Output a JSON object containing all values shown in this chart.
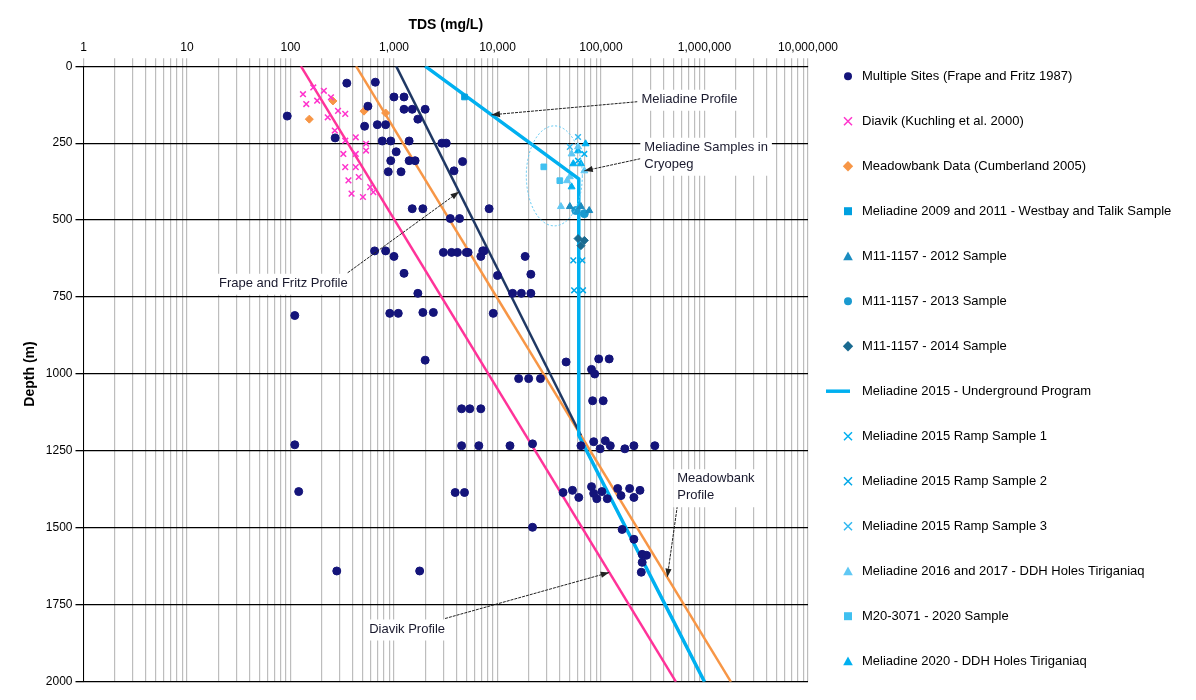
{
  "chart_data": {
    "type": "scatter",
    "xlabel": "TDS (mg/L)",
    "ylabel": "Depth (m)",
    "log": "x",
    "grid": true,
    "legend": "right",
    "xlim": [
      1,
      10000000
    ],
    "xticks": [
      {
        "value": 1,
        "label": "1"
      },
      {
        "value": 2,
        "label": null
      },
      {
        "value": 3,
        "label": null
      },
      {
        "value": 4,
        "label": null
      },
      {
        "value": 5,
        "label": null
      },
      {
        "value": 6,
        "label": null
      },
      {
        "value": 7,
        "label": null
      },
      {
        "value": 8,
        "label": null
      },
      {
        "value": 9,
        "label": null
      },
      {
        "value": 10,
        "label": "10"
      },
      {
        "value": 20,
        "label": null
      },
      {
        "value": 30,
        "label": null
      },
      {
        "value": 40,
        "label": null
      },
      {
        "value": 50,
        "label": null
      },
      {
        "value": 60,
        "label": null
      },
      {
        "value": 70,
        "label": null
      },
      {
        "value": 80,
        "label": null
      },
      {
        "value": 90,
        "label": null
      },
      {
        "value": 100,
        "label": "100"
      },
      {
        "value": 200,
        "label": null
      },
      {
        "value": 300,
        "label": null
      },
      {
        "value": 400,
        "label": null
      },
      {
        "value": 500,
        "label": null
      },
      {
        "value": 600,
        "label": null
      },
      {
        "value": 700,
        "label": null
      },
      {
        "value": 800,
        "label": null
      },
      {
        "value": 900,
        "label": null
      },
      {
        "value": 1000,
        "label": "1,000"
      },
      {
        "value": 2000,
        "label": null
      },
      {
        "value": 3000,
        "label": null
      },
      {
        "value": 4000,
        "label": null
      },
      {
        "value": 5000,
        "label": null
      },
      {
        "value": 6000,
        "label": null
      },
      {
        "value": 7000,
        "label": null
      },
      {
        "value": 8000,
        "label": null
      },
      {
        "value": 9000,
        "label": null
      },
      {
        "value": 10000,
        "label": "10,000"
      },
      {
        "value": 20000,
        "label": null
      },
      {
        "value": 30000,
        "label": null
      },
      {
        "value": 40000,
        "label": null
      },
      {
        "value": 50000,
        "label": null
      },
      {
        "value": 60000,
        "label": null
      },
      {
        "value": 70000,
        "label": null
      },
      {
        "value": 80000,
        "label": null
      },
      {
        "value": 90000,
        "label": null
      },
      {
        "value": 100000,
        "label": "100,000"
      },
      {
        "value": 200000,
        "label": null
      },
      {
        "value": 300000,
        "label": null
      },
      {
        "value": 400000,
        "label": null
      },
      {
        "value": 500000,
        "label": null
      },
      {
        "value": 600000,
        "label": null
      },
      {
        "value": 700000,
        "label": null
      },
      {
        "value": 800000,
        "label": null
      },
      {
        "value": 900000,
        "label": null
      },
      {
        "value": 1000000,
        "label": "1,000,000"
      },
      {
        "value": 2000000,
        "label": null
      },
      {
        "value": 3000000,
        "label": null
      },
      {
        "value": 4000000,
        "label": null
      },
      {
        "value": 5000000,
        "label": null
      },
      {
        "value": 6000000,
        "label": null
      },
      {
        "value": 7000000,
        "label": null
      },
      {
        "value": 8000000,
        "label": null
      },
      {
        "value": 9000000,
        "label": null
      },
      {
        "value": 10000000,
        "label": "10,000,000"
      }
    ],
    "ylim": [
      2000,
      0
    ],
    "yticks": [
      0,
      250,
      500,
      750,
      1000,
      1250,
      1500,
      1750,
      2000
    ],
    "series": [
      {
        "name": "Multiple Sites (Frape and Fritz 1987)",
        "type": "scatter",
        "marker": "circle",
        "color": "#14147a",
        "x": [
          350,
          660,
          93,
          1000,
          1250,
          560,
          1250,
          1500,
          2000,
          1700,
          520,
          690,
          830,
          270,
          770,
          930,
          1400,
          2900,
          3200,
          1050,
          930,
          1400,
          1600,
          4600,
          880,
          1170,
          3800,
          1500,
          1900,
          8300,
          3500,
          4300,
          650,
          830,
          1000,
          3000,
          3600,
          4100,
          5200,
          7200,
          5000,
          6900,
          7400,
          1250,
          1700,
          10000,
          18500,
          21000,
          14000,
          17000,
          21000,
          110,
          910,
          1100,
          1900,
          2400,
          9100,
          2000,
          46000,
          95000,
          120000,
          81000,
          87000,
          16000,
          20000,
          26000,
          83000,
          105000,
          4500,
          5400,
          6900,
          110,
          4500,
          6600,
          13200,
          21800,
          64000,
          85000,
          98000,
          110000,
          123000,
          170000,
          208000,
          331000,
          120,
          3900,
          4800,
          43000,
          53000,
          61000,
          81000,
          85000,
          91000,
          102000,
          115000,
          145000,
          156000,
          189000,
          208000,
          238000,
          21800,
          160000,
          208000,
          250000,
          275000,
          250000,
          245000,
          280,
          1770
        ],
        "values": [
          55,
          52,
          162,
          100,
          100,
          130,
          140,
          140,
          140,
          172,
          195,
          190,
          190,
          233,
          243,
          243,
          243,
          250,
          250,
          278,
          307,
          307,
          307,
          310,
          343,
          343,
          340,
          463,
          463,
          463,
          495,
          495,
          600,
          600,
          618,
          605,
          605,
          605,
          605,
          600,
          605,
          618,
          600,
          673,
          738,
          680,
          618,
          676,
          738,
          738,
          738,
          810,
          803,
          803,
          800,
          800,
          803,
          955,
          961,
          951,
          951,
          985,
          1000,
          1015,
          1015,
          1015,
          1087,
          1087,
          1113,
          1113,
          1113,
          1230,
          1233,
          1233,
          1233,
          1227,
          1233,
          1220,
          1243,
          1217,
          1233,
          1243,
          1233,
          1233,
          1382,
          1385,
          1385,
          1385,
          1378,
          1401,
          1366,
          1388,
          1405,
          1382,
          1405,
          1372,
          1395,
          1372,
          1401,
          1378,
          1498,
          1505,
          1537,
          1586,
          1589,
          1612,
          1644,
          1640,
          1640
        ]
      },
      {
        "name": "Diavik (Kuchling et al. 2000)",
        "type": "scatter",
        "marker": "cross",
        "color": "#ff33cc",
        "x": [
          132,
          166,
          210,
          142,
          181,
          246,
          288,
          229,
          338,
          268,
          338,
          427,
          537,
          324,
          427,
          537,
          338,
          427,
          363,
          457,
          589,
          389,
          501,
          631
        ],
        "values": [
          91,
          69,
          80,
          123,
          112,
          101,
          145,
          166,
          155,
          209,
          242,
          231,
          252,
          285,
          285,
          274,
          328,
          328,
          371,
          360,
          393,
          414,
          425,
          409
        ]
      },
      {
        "name": "Meadowbank Data (Cumberland 2005)",
        "type": "scatter",
        "marker": "diamond",
        "color": "#f79646",
        "x": [
          152,
          257,
          513,
          830
        ],
        "values": [
          172,
          113,
          146,
          152
        ]
      },
      {
        "name": "Meliadine 2009 and 2011 - Westbay and Talik Sample",
        "type": "scatter",
        "marker": "square",
        "color": "#00a0e0",
        "x": [
          4800
        ],
        "values": [
          100
        ]
      },
      {
        "name": "M11-1157 - 2012 Sample",
        "type": "scatter",
        "marker": "triangle",
        "color": "#1a8cc0",
        "x": [
          64000,
          50000,
          77000
        ],
        "values": [
          456,
          456,
          469
        ]
      },
      {
        "name": "M11-1157 - 2013 Sample",
        "type": "scatter",
        "marker": "circle",
        "color": "#1a9ad0",
        "x": [
          57000,
          69000
        ],
        "values": [
          469,
          479
        ]
      },
      {
        "name": "M11-1157 - 2014 Sample",
        "type": "scatter",
        "marker": "diamond",
        "color": "#1a6a90",
        "x": [
          60000,
          69000,
          64000
        ],
        "values": [
          560,
          566,
          583
        ]
      },
      {
        "name": "Meliadine 2015 - Underground Program",
        "type": "line",
        "marker": "none",
        "color": "#00b0f0",
        "x": [
          2000,
          61000,
          61000,
          1000000
        ],
        "values": [
          0,
          366,
          1200,
          2000
        ]
      },
      {
        "name": "Meliadine 2015 Ramp Sample 1",
        "type": "scatter",
        "marker": "cross",
        "color": "#00b0f0",
        "x": [
          60000,
          69000
        ],
        "values": [
          307,
          285
        ]
      },
      {
        "name": "Meliadine 2015 Ramp Sample 2",
        "type": "scatter",
        "marker": "cross",
        "color": "#00a8e8",
        "x": [
          54000,
          66000,
          55000,
          67000
        ],
        "values": [
          631,
          631,
          728,
          728
        ]
      },
      {
        "name": "Meliadine 2015 Ramp Sample 3",
        "type": "scatter",
        "marker": "cross",
        "color": "#30b8f0",
        "x": [
          50000,
          60000
        ],
        "values": [
          262,
          230
        ]
      },
      {
        "name": "Meliadine 2016 and 2017 - DDH Holes Tiriganiaq",
        "type": "scatter",
        "marker": "triangle",
        "color": "#60c8f4",
        "x": [
          41000,
          52000,
          60000,
          50000,
          69000,
          47000
        ],
        "values": [
          456,
          285,
          262,
          359,
          340,
          372
        ]
      },
      {
        "name": "M20-3071 - 2020 Sample",
        "type": "scatter",
        "marker": "square",
        "color": "#40c0f0",
        "x": [
          28000,
          40000
        ],
        "values": [
          327,
          372
        ]
      },
      {
        "name": "Meliadine 2020 - DDH Holes Tiriganiaq",
        "type": "scatter",
        "marker": "triangle",
        "color": "#00b0f0",
        "x": [
          54000,
          64000,
          60000,
          71000,
          52000
        ],
        "values": [
          317,
          317,
          275,
          252,
          392
        ]
      },
      {
        "type": "line",
        "marker": "none",
        "color": "#ff3399",
        "x": [
          126,
          530000
        ],
        "values": [
          0,
          2000
        ]
      },
      {
        "type": "line",
        "marker": "none",
        "color": "#1f3864",
        "x": [
          1050,
          64000
        ],
        "values": [
          0,
          1200
        ]
      },
      {
        "type": "line",
        "marker": "none",
        "color": "#f79646",
        "x": [
          430,
          1800000
        ],
        "values": [
          0,
          2000
        ]
      }
    ],
    "annotations": [
      {
        "text": "Meliadine Profile",
        "x": 8750,
        "y": 158
      },
      {
        "text": "Meliadine Samples in\nCryopeg",
        "x": 69000,
        "y": 340
      },
      {
        "text": "Frape and Fritz Profile",
        "x": 4250,
        "y": 408
      },
      {
        "text": "Meadowbank\nProfile",
        "x": 437000,
        "y": 1660
      },
      {
        "text": "Diavik Profile",
        "x": 120000,
        "y": 1645
      }
    ]
  }
}
